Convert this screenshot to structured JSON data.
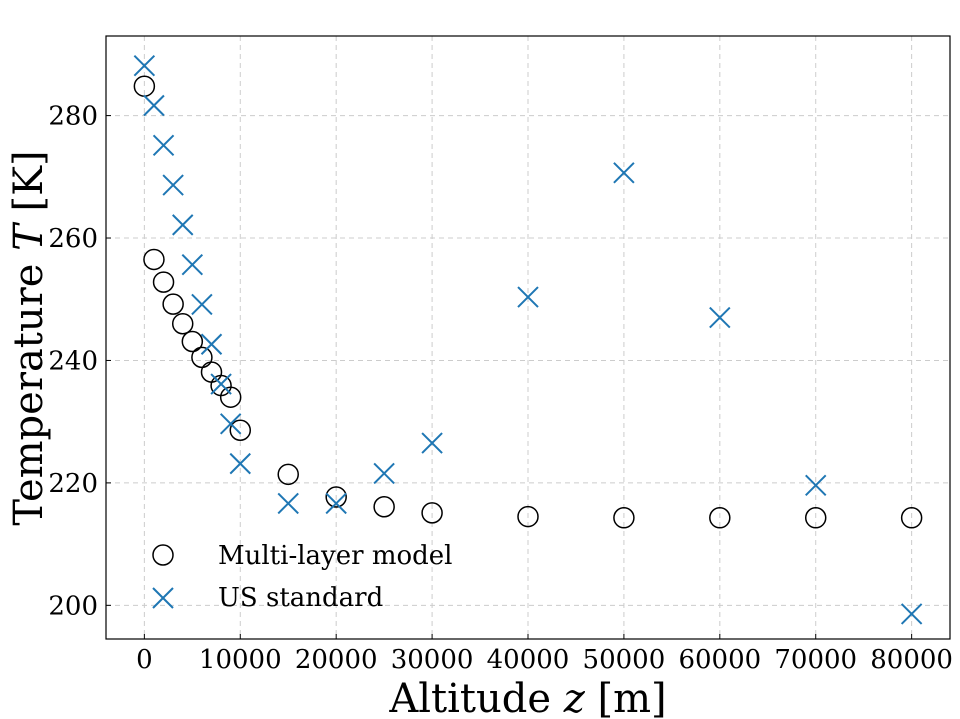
{
  "chart_data": {
    "type": "scatter",
    "xlabel_text": "Altitude ",
    "xlabel_var": "z",
    "xlabel_unit": " [m]",
    "ylabel_text": "Temperature ",
    "ylabel_var": "T",
    "ylabel_unit": " [K]",
    "xlim": [
      -4000,
      84000
    ],
    "ylim": [
      194.5,
      293
    ],
    "x_ticks": [
      0,
      10000,
      20000,
      30000,
      40000,
      50000,
      60000,
      70000,
      80000
    ],
    "y_ticks": [
      200,
      220,
      240,
      260,
      280
    ],
    "grid": true,
    "legend_position": "lower-left",
    "series": [
      {
        "name": "Multi-layer model",
        "marker": "circle",
        "color": "#000000",
        "points": [
          [
            0,
            284.8
          ],
          [
            1000,
            256.5
          ],
          [
            2000,
            252.8
          ],
          [
            3000,
            249.2
          ],
          [
            4000,
            246.0
          ],
          [
            5000,
            243.1
          ],
          [
            6000,
            240.5
          ],
          [
            7000,
            238.1
          ],
          [
            8000,
            235.9
          ],
          [
            9000,
            234.0
          ],
          [
            10000,
            228.6
          ],
          [
            15000,
            221.4
          ],
          [
            20000,
            217.7
          ],
          [
            25000,
            216.1
          ],
          [
            30000,
            215.1
          ],
          [
            40000,
            214.5
          ],
          [
            50000,
            214.3
          ],
          [
            60000,
            214.3
          ],
          [
            70000,
            214.3
          ],
          [
            80000,
            214.3
          ]
        ]
      },
      {
        "name": "US standard",
        "marker": "x",
        "color": "#1f77b4",
        "points": [
          [
            0,
            288.15
          ],
          [
            1000,
            281.65
          ],
          [
            2000,
            275.15
          ],
          [
            3000,
            268.65
          ],
          [
            4000,
            262.15
          ],
          [
            5000,
            255.65
          ],
          [
            6000,
            249.15
          ],
          [
            7000,
            242.65
          ],
          [
            8000,
            236.15
          ],
          [
            9000,
            229.65
          ],
          [
            10000,
            223.15
          ],
          [
            15000,
            216.65
          ],
          [
            20000,
            216.65
          ],
          [
            25000,
            221.55
          ],
          [
            30000,
            226.5
          ],
          [
            40000,
            250.35
          ],
          [
            50000,
            270.65
          ],
          [
            60000,
            247.0
          ],
          [
            70000,
            219.6
          ],
          [
            80000,
            198.6
          ]
        ]
      }
    ]
  }
}
